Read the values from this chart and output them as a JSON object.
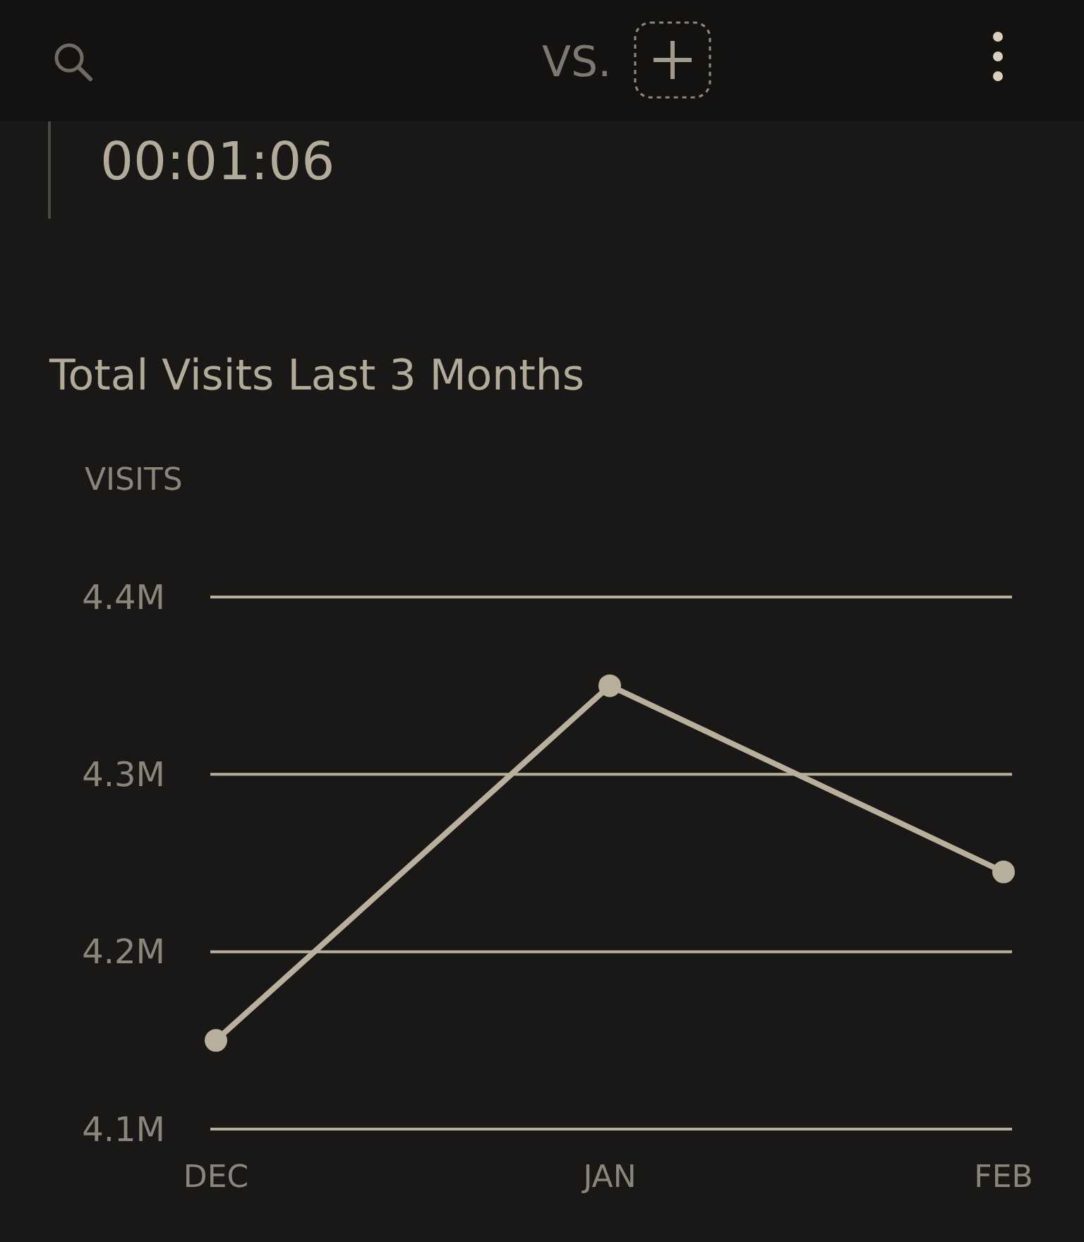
{
  "chart_data": {
    "type": "line",
    "title": "Total Visits Last 3 Months",
    "ylabel": "VISITS",
    "annotations": [
      "VS.",
      "00:01:06"
    ],
    "categories": [
      "DEC",
      "JAN",
      "FEB"
    ],
    "series": [
      {
        "color": "#b8af9c",
        "values": [
          4.15,
          4.35,
          4.245
        ]
      }
    ],
    "ylim": [
      4.1,
      4.4
    ],
    "yticks": [
      {
        "value": 4.1,
        "label": "4.1M"
      },
      {
        "value": 4.2,
        "label": "4.2M"
      },
      {
        "value": 4.3,
        "label": "4.3M"
      },
      {
        "value": 4.4,
        "label": "4.4M"
      }
    ],
    "grid": "y",
    "marker": "circle",
    "line_style": "solid"
  }
}
